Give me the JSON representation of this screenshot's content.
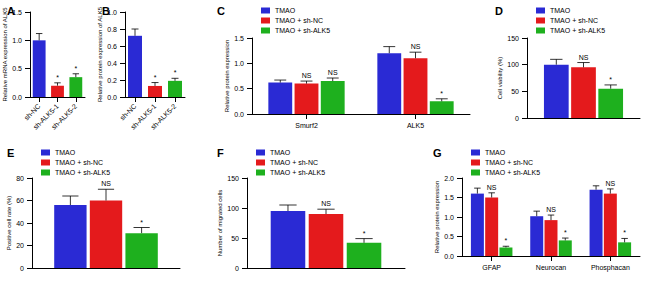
{
  "chart_data": [
    {
      "type": "bar",
      "panel": "A",
      "ylabel": "Relative mRNA expression of ALK5",
      "categories": [
        "sh-NC",
        "sh-ALK5-1",
        "sh-ALK5-2"
      ],
      "values": [
        1.0,
        0.2,
        0.35
      ],
      "errors": [
        0.12,
        0.05,
        0.06
      ],
      "annotations": [
        null,
        "*",
        "*"
      ],
      "colors": [
        "#2a2ad4",
        "#e41a1c",
        "#1eb01e"
      ],
      "ylim": [
        0,
        1.5
      ],
      "yticks": [
        {
          "value": 0,
          "label": "0.0"
        },
        0.5,
        {
          "value": 1,
          "label": "1.0"
        },
        1.5
      ],
      "grid": false
    },
    {
      "type": "bar",
      "panel": "B",
      "ylabel": "Relative protein expression of ALK5",
      "categories": [
        "sh-NC",
        "sh-ALK5-1",
        "sh-ALK5-2"
      ],
      "values": [
        0.72,
        0.13,
        0.19
      ],
      "errors": [
        0.08,
        0.04,
        0.03
      ],
      "annotations": [
        null,
        "*",
        "*"
      ],
      "colors": [
        "#2a2ad4",
        "#e41a1c",
        "#1eb01e"
      ],
      "ylim": [
        0,
        1.0
      ],
      "yticks": [
        {
          "value": 0,
          "label": "0.0"
        },
        0.2,
        0.4,
        0.6,
        0.8,
        {
          "value": 1,
          "label": "1.0"
        }
      ],
      "grid": false
    },
    {
      "type": "bar",
      "panel": "C",
      "ylabel": "Relative protein expression",
      "categories": [
        "Smurf2",
        "ALK5"
      ],
      "series": [
        {
          "name": "TMAO",
          "color": "#2a2ad4",
          "values": [
            0.62,
            1.2
          ],
          "errors": [
            0.05,
            0.13
          ]
        },
        {
          "name": "TMAO + sh-NC",
          "color": "#e41a1c",
          "values": [
            0.6,
            1.1
          ],
          "errors": [
            0.05,
            0.12
          ],
          "annotations": [
            "NS",
            "NS"
          ]
        },
        {
          "name": "TMAO + sh-ALK5",
          "color": "#1eb01e",
          "values": [
            0.65,
            0.25
          ],
          "errors": [
            0.06,
            0.05
          ],
          "annotations": [
            "NS",
            "*"
          ]
        }
      ],
      "ylim": [
        0,
        1.5
      ],
      "yticks": [
        {
          "value": 0,
          "label": "0.0"
        },
        0.5,
        {
          "value": 1,
          "label": "1.0"
        },
        1.5
      ],
      "legend": "top-left",
      "grid": false
    },
    {
      "type": "bar",
      "panel": "D",
      "ylabel": "Cell viability (%)",
      "categories": [
        null
      ],
      "series": [
        {
          "name": "TMAO",
          "color": "#2a2ad4",
          "values": [
            100
          ],
          "errors": [
            10
          ]
        },
        {
          "name": "TMAO + sh-NC",
          "color": "#e41a1c",
          "values": [
            95
          ],
          "errors": [
            9
          ],
          "annotations": [
            "NS"
          ]
        },
        {
          "name": "TMAO + sh-ALK5",
          "color": "#1eb01e",
          "values": [
            55
          ],
          "errors": [
            7
          ],
          "annotations": [
            "*"
          ]
        }
      ],
      "ylim": [
        0,
        150
      ],
      "yticks": [
        0,
        50,
        100,
        150
      ],
      "legend": "top-left",
      "tick_labels": "y",
      "grid": false
    },
    {
      "type": "bar",
      "panel": "E",
      "ylabel": "Positive cell rate (%)",
      "categories": [
        null
      ],
      "series": [
        {
          "name": "TMAO",
          "color": "#2a2ad4",
          "values": [
            56
          ],
          "errors": [
            8
          ]
        },
        {
          "name": "TMAO + sh-NC",
          "color": "#e41a1c",
          "values": [
            60
          ],
          "errors": [
            10
          ],
          "annotations": [
            "NS"
          ]
        },
        {
          "name": "TMAO + sh-ALK5",
          "color": "#1eb01e",
          "values": [
            31
          ],
          "errors": [
            5
          ],
          "annotations": [
            "*"
          ]
        }
      ],
      "ylim": [
        0,
        80
      ],
      "yticks": [
        0,
        20,
        40,
        60,
        80
      ],
      "legend": "top-left",
      "tick_labels": "y",
      "grid": false
    },
    {
      "type": "bar",
      "panel": "F",
      "ylabel": "Number of migrated cells",
      "categories": [
        null
      ],
      "series": [
        {
          "name": "TMAO",
          "color": "#2a2ad4",
          "values": [
            95
          ],
          "errors": [
            10
          ]
        },
        {
          "name": "TMAO + sh-NC",
          "color": "#e41a1c",
          "values": [
            90
          ],
          "errors": [
            8
          ],
          "annotations": [
            "NS"
          ]
        },
        {
          "name": "TMAO + sh-ALK5",
          "color": "#1eb01e",
          "values": [
            42
          ],
          "errors": [
            7
          ],
          "annotations": [
            "*"
          ]
        }
      ],
      "ylim": [
        0,
        150
      ],
      "yticks": [
        0,
        50,
        100,
        150
      ],
      "legend": "top-left",
      "tick_labels": "y",
      "grid": false
    },
    {
      "type": "bar",
      "panel": "G",
      "ylabel": "Relative protein expression",
      "categories": [
        "GFAP",
        "Neurocan",
        "Phosphacan"
      ],
      "series": [
        {
          "name": "TMAO",
          "color": "#2a2ad4",
          "values": [
            1.6,
            1.02,
            1.7
          ],
          "errors": [
            0.14,
            0.13,
            0.1
          ]
        },
        {
          "name": "TMAO + sh-NC",
          "color": "#e41a1c",
          "values": [
            1.5,
            0.92,
            1.6
          ],
          "errors": [
            0.12,
            0.13,
            0.12
          ],
          "annotations": [
            "NS",
            "NS",
            "NS"
          ]
        },
        {
          "name": "TMAO + sh-ALK5",
          "color": "#1eb01e",
          "values": [
            0.22,
            0.4,
            0.35
          ],
          "errors": [
            0.03,
            0.06,
            0.1
          ],
          "annotations": [
            "*",
            "*",
            "*"
          ]
        }
      ],
      "ylim": [
        0,
        2.0
      ],
      "yticks": [
        {
          "value": 0,
          "label": "0.0"
        },
        0.5,
        {
          "value": 1,
          "label": "1.0"
        },
        1.5,
        {
          "value": 2,
          "label": "2.0"
        }
      ],
      "legend": "top-left",
      "grid": false
    }
  ]
}
